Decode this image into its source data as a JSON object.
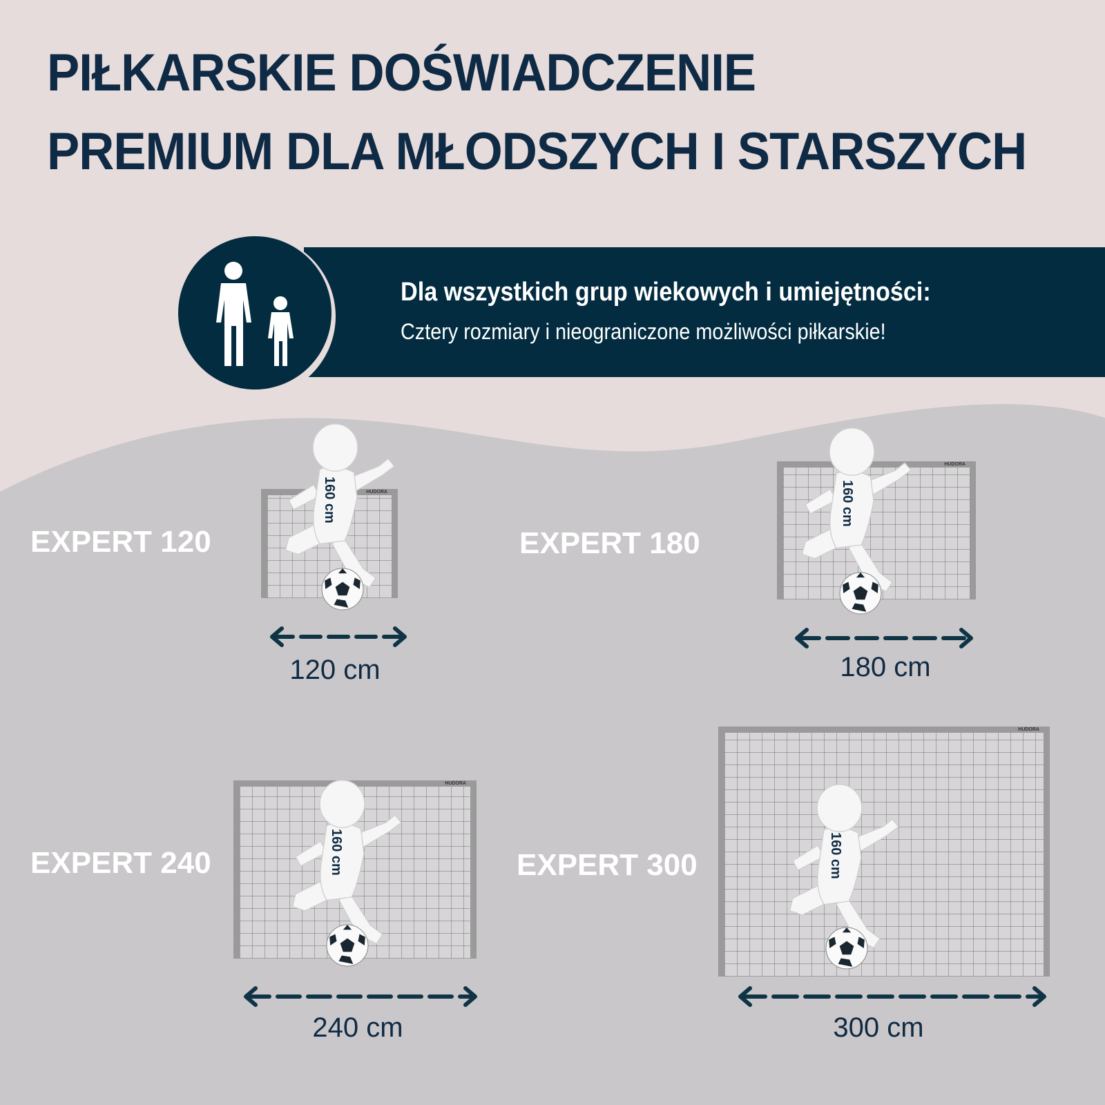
{
  "headline": {
    "line1": "PIŁKARSKIE DOŚWIADCZENIE",
    "line2": "PREMIUM DLA MŁODSZYCH I STARSZYCH"
  },
  "banner": {
    "icon": "adult-and-child-icon",
    "title": "Dla wszystkich grup wiekowych i umiejętności:",
    "subtitle": "Cztery rozmiary i nieograniczone możliwości piłkarskie!"
  },
  "colors": {
    "navy": "#032c40",
    "background": "#e6dcdc",
    "wave": "#c9c7c9"
  },
  "products": [
    {
      "name": "EXPERT 120",
      "width": "120 cm",
      "figure_height": "160 cm",
      "brand": "HUDORA"
    },
    {
      "name": "EXPERT 180",
      "width": "180 cm",
      "figure_height": "160 cm",
      "brand": "HUDORA"
    },
    {
      "name": "EXPERT 240",
      "width": "240 cm",
      "figure_height": "160 cm",
      "brand": "HUDORA"
    },
    {
      "name": "EXPERT 300",
      "width": "300 cm",
      "figure_height": "160 cm",
      "brand": "HUDORA"
    }
  ]
}
